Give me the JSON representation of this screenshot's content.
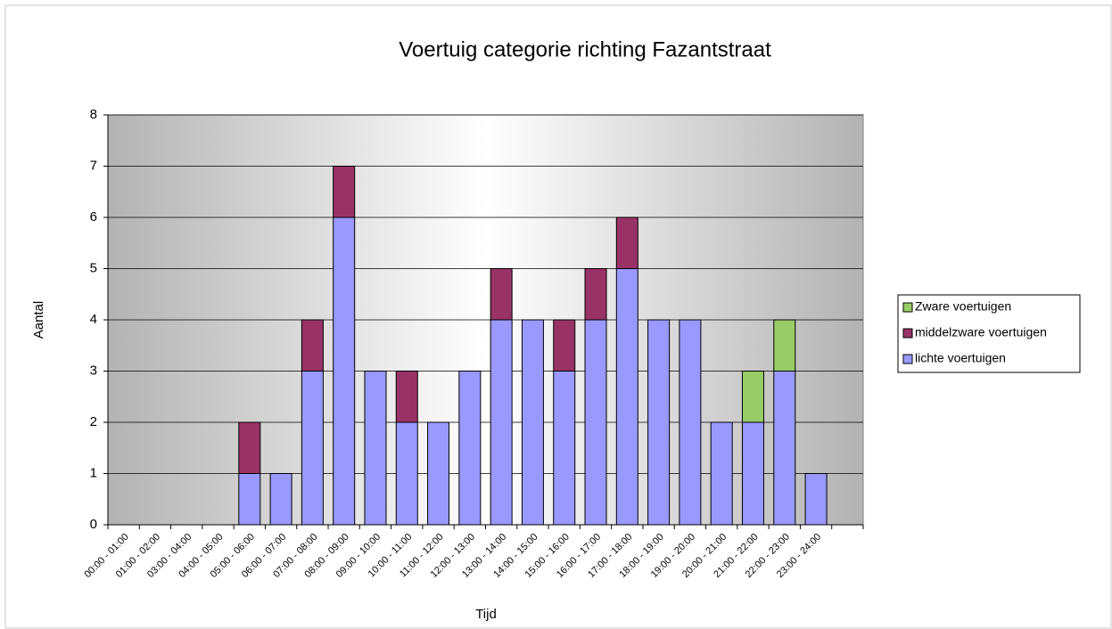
{
  "chart_data": {
    "type": "bar",
    "stacked": true,
    "title": "Voertuig categorie richting Fazantstraat",
    "x_label": "Tijd",
    "y_label": "Aantal",
    "categories": [
      "00:00 - 01:00",
      "01:00 - 02:00",
      "03:00 - 04:00",
      "04:00 - 05:00",
      "05:00 - 06:00",
      "06:00 - 07:00",
      "07:00 - 08:00",
      "08:00 - 09:00",
      "09:00 - 10:00",
      "10:00 - 11:00",
      "11:00 - 12:00",
      "12:00 - 13:00",
      "13:00 - 14:00",
      "14:00 - 15:00",
      "15:00 - 16:00",
      "16:00 - 17:00",
      "17:00 - 18:00",
      "18:00 - 19:00",
      "19:00 - 20:00",
      "20:00 - 21:00",
      "21:00 - 22:00",
      "22:00 - 23:00",
      "23:00 - 24:00",
      null
    ],
    "series": [
      {
        "name": "lichte voertuigen",
        "color": "#9999ff",
        "values": [
          0,
          0,
          0,
          0,
          1,
          1,
          3,
          6,
          3,
          2,
          2,
          3,
          4,
          4,
          3,
          4,
          5,
          4,
          4,
          2,
          2,
          3,
          1,
          null
        ]
      },
      {
        "name": "middelzware voertuigen",
        "color": "#993366",
        "values": [
          0,
          0,
          0,
          0,
          1,
          0,
          1,
          1,
          0,
          1,
          0,
          0,
          1,
          0,
          1,
          1,
          1,
          0,
          0,
          0,
          0,
          0,
          0,
          null
        ]
      },
      {
        "name": "Zware voertuigen",
        "color": "#99cc66",
        "values": [
          0,
          0,
          0,
          0,
          0,
          0,
          0,
          0,
          0,
          0,
          0,
          0,
          0,
          0,
          0,
          0,
          0,
          0,
          0,
          0,
          1,
          1,
          0,
          null
        ]
      }
    ],
    "ylim": [
      0,
      8
    ],
    "yticks": [
      0,
      1,
      2,
      3,
      4,
      5,
      6,
      7,
      8
    ],
    "grid": true,
    "legend": "right"
  }
}
